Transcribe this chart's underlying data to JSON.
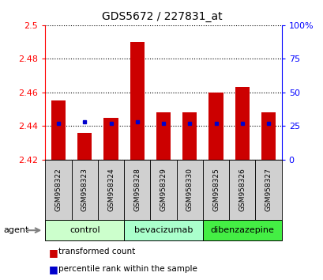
{
  "title": "GDS5672 / 227831_at",
  "samples": [
    "GSM958322",
    "GSM958323",
    "GSM958324",
    "GSM958328",
    "GSM958329",
    "GSM958330",
    "GSM958325",
    "GSM958326",
    "GSM958327"
  ],
  "transformed_counts": [
    2.455,
    2.436,
    2.445,
    2.49,
    2.448,
    2.448,
    2.46,
    2.463,
    2.448
  ],
  "percentile_ranks": [
    27,
    28,
    27,
    28,
    27,
    27,
    27,
    27,
    27
  ],
  "groups": [
    {
      "label": "control",
      "indices": [
        0,
        1,
        2
      ],
      "color": "#ccffcc"
    },
    {
      "label": "bevacizumab",
      "indices": [
        3,
        4,
        5
      ],
      "color": "#aaffcc"
    },
    {
      "label": "dibenzazepine",
      "indices": [
        6,
        7,
        8
      ],
      "color": "#44ee44"
    }
  ],
  "bar_color": "#cc0000",
  "percentile_color": "#0000cc",
  "ylim_left": [
    2.42,
    2.5
  ],
  "ylim_right": [
    0,
    100
  ],
  "yticks_left": [
    2.42,
    2.44,
    2.46,
    2.48,
    2.5
  ],
  "yticks_right": [
    0,
    25,
    50,
    75,
    100
  ],
  "ytick_labels_left": [
    "2.42",
    "2.44",
    "2.46",
    "2.48",
    "2.5"
  ],
  "ytick_labels_right": [
    "0",
    "25",
    "50",
    "75",
    "100%"
  ],
  "bar_width": 0.55,
  "background_color": "#ffffff",
  "grid_color": "#000000",
  "ybase": 2.42,
  "legend_labels": [
    "transformed count",
    "percentile rank within the sample"
  ]
}
